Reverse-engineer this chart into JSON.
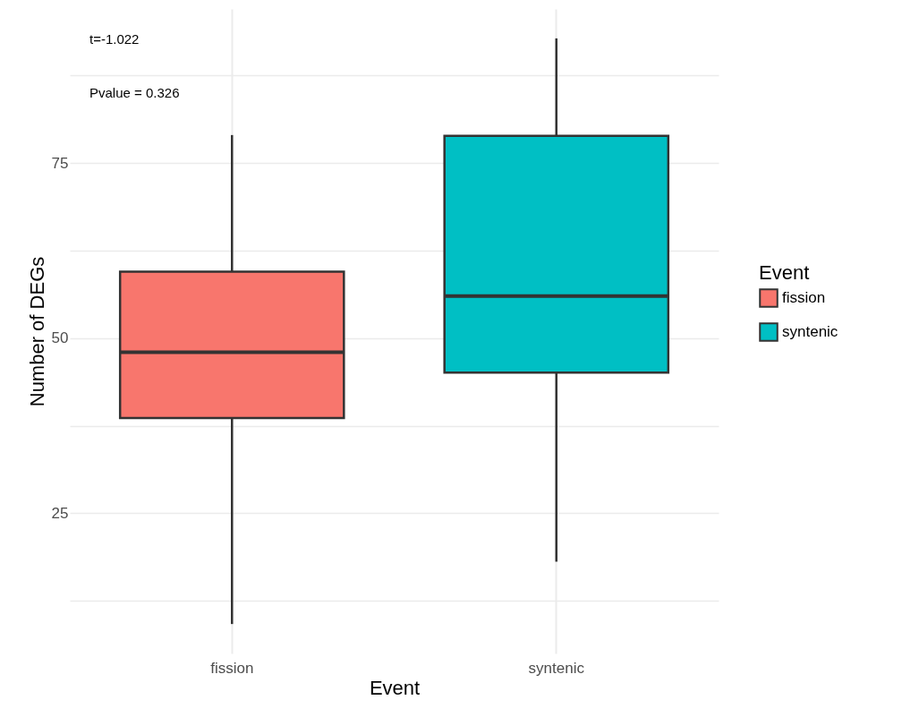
{
  "chart_data": {
    "type": "box",
    "xlabel": "Event",
    "ylabel": "Number of DEGs",
    "legend_title": "Event",
    "legend": "right",
    "grid": true,
    "categories": [
      "fission",
      "syntenic"
    ],
    "series": [
      {
        "name": "fission",
        "color": "#f8766d",
        "boxes": [
          {
            "low": 9.2,
            "q1": 38.6,
            "median": 48,
            "q3": 59.5,
            "high": 79
          },
          null
        ]
      },
      {
        "name": "syntenic",
        "color": "#00bfc4",
        "boxes": [
          null,
          {
            "low": 18.1,
            "q1": 45.1,
            "median": 56,
            "q3": 78.9,
            "high": 92.8
          }
        ]
      }
    ],
    "ylim": [
      5,
      97
    ],
    "yticks": [
      {
        "value": 12.5,
        "label": null
      },
      25,
      {
        "value": 37.5,
        "label": null
      },
      50,
      {
        "value": 62.5,
        "label": null
      },
      75,
      {
        "value": 87.5,
        "label": null
      }
    ],
    "annotations": [
      "t=-1.022",
      "Pvalue = 0.326"
    ]
  }
}
